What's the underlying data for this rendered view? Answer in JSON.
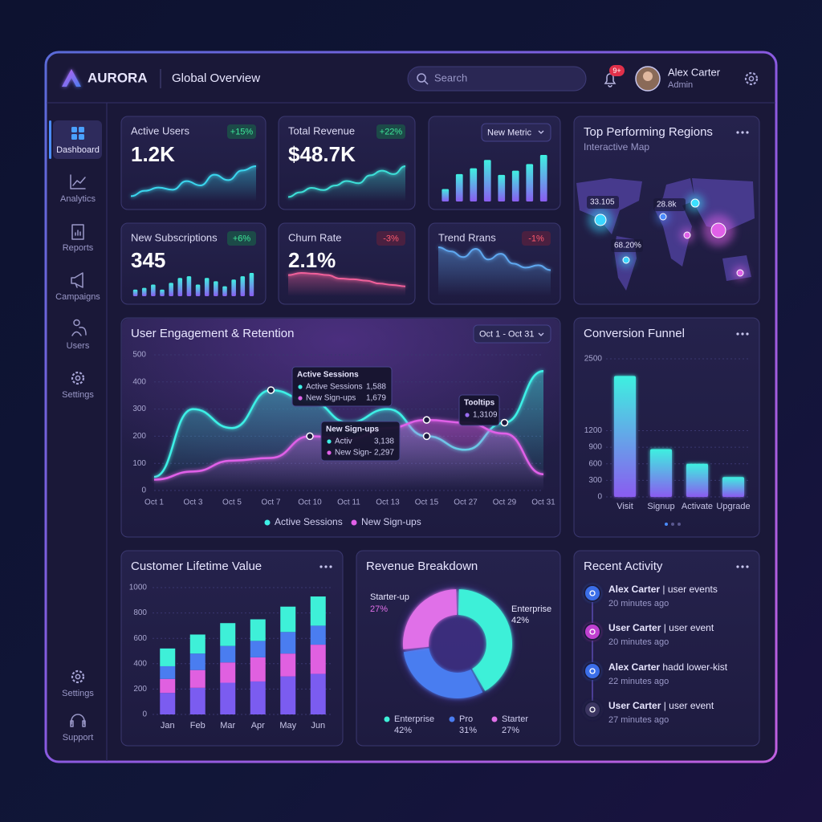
{
  "header": {
    "brand": "AURORA",
    "title": "Global Overview",
    "search_placeholder": "Search",
    "notification_count": "9+",
    "user": {
      "name": "Alex Carter",
      "role": "Admin"
    }
  },
  "sidebar": {
    "items": [
      "Dashboard",
      "Analytics",
      "Reports",
      "Campaigns",
      "Users",
      "Settings"
    ],
    "bottom_items": [
      "Settings",
      "Support"
    ]
  },
  "kpis": [
    {
      "title": "Active Users",
      "value": "1.2K",
      "change": "+15%",
      "type": "line",
      "color": "#3ad6ee",
      "values": [
        10,
        20,
        26,
        22,
        38,
        30,
        50,
        40,
        58,
        66
      ]
    },
    {
      "title": "Total Revenue",
      "value": "$48.7K",
      "change": "+22%",
      "type": "line",
      "color": "#3ee0d8",
      "values": [
        8,
        16,
        24,
        20,
        28,
        36,
        32,
        46,
        54,
        48,
        62
      ]
    },
    {
      "dropdown": "New Metric",
      "type": "bar",
      "color": "#6a8cf5",
      "values": [
        15,
        33,
        40,
        50,
        32,
        37,
        45,
        56
      ]
    },
    {
      "title": "New Subscriptions",
      "value": "345",
      "change": "+6%",
      "type": "bar",
      "color": "#6a8cf5",
      "values": [
        8,
        10,
        14,
        8,
        16,
        22,
        24,
        14,
        22,
        18,
        12,
        20,
        24,
        28
      ]
    },
    {
      "title": "Churn Rate",
      "value": "2.1%",
      "change": "-3%",
      "type": "line",
      "color": "#f0609a",
      "values": [
        30,
        33,
        32,
        30,
        25,
        24,
        22,
        18,
        16,
        14
      ]
    },
    {
      "title": "Trend Rrans",
      "change": "-1%",
      "type": "line",
      "color": "#5fa8f0",
      "values": [
        60,
        55,
        48,
        58,
        45,
        52,
        40,
        35,
        38,
        32
      ]
    }
  ],
  "map": {
    "title": "Top Performing Regions",
    "subtitle": "Interactive Map",
    "labels": [
      "33.105",
      "28.8k",
      "68.20%"
    ]
  },
  "chart_data": [
    {
      "type": "line",
      "title": "User Engagement & Retention",
      "date_range": "Oct 1 - Oct 31",
      "categories": [
        "Oct 1",
        "Oct 3",
        "Oct 5",
        "Oct 7",
        "Oct 10",
        "Oct 11",
        "Oct 13",
        "Oct 15",
        "Oct 27",
        "Oct 29",
        "Oct 31"
      ],
      "ylim": [
        0,
        500
      ],
      "yticks": [
        0,
        100,
        200,
        300,
        400,
        500
      ],
      "grid": true,
      "series": [
        {
          "name": "Active Sessions",
          "color": "#3ef0e6",
          "values": [
            50,
            300,
            230,
            370,
            330,
            250,
            300,
            200,
            150,
            250,
            440
          ]
        },
        {
          "name": "New Sign-ups",
          "color": "#e060e8",
          "values": [
            40,
            70,
            110,
            120,
            200,
            190,
            230,
            260,
            250,
            210,
            60
          ]
        }
      ],
      "tooltips": [
        {
          "title": "Active Sessions",
          "rows": [
            {
              "label": "Active Sessions",
              "value": "1,588",
              "color": "#3ef0e6"
            },
            {
              "label": "New Sign-ups",
              "value": "1,679",
              "color": "#e060e8"
            }
          ]
        },
        {
          "title": "New Sign-ups",
          "rows": [
            {
              "label": "Activ",
              "value": "3,138",
              "color": "#3ef0e6"
            },
            {
              "label": "New Sign-",
              "value": "2,297",
              "color": "#e060e8"
            }
          ]
        },
        {
          "title": "Tooltips",
          "rows": [
            {
              "value": "1,3109",
              "color": "#9a6cf0"
            }
          ]
        }
      ]
    },
    {
      "type": "bar",
      "title": "Conversion Funnel",
      "categories": [
        "Visit",
        "Signup",
        "Activate",
        "Upgrade"
      ],
      "values": [
        2190,
        865,
        600,
        360
      ],
      "ylim": [
        0,
        2500
      ],
      "yticks": [
        0,
        300,
        600,
        900,
        1200,
        2500
      ],
      "grid": true
    },
    {
      "type": "stacked_bar",
      "title": "Customer Lifetime Value",
      "categories": [
        "Jan",
        "Feb",
        "Mar",
        "Apr",
        "May",
        "Jun"
      ],
      "ylim": [
        0,
        1000
      ],
      "yticks": [
        0,
        200,
        400,
        600,
        800,
        1000
      ],
      "grid": true,
      "series": [
        {
          "color": "#7b5cf0",
          "values": [
            170,
            210,
            250,
            260,
            300,
            320
          ]
        },
        {
          "color": "#e060e0",
          "values": [
            110,
            140,
            160,
            190,
            180,
            230
          ]
        },
        {
          "color": "#4a7df0",
          "values": [
            100,
            130,
            130,
            130,
            170,
            150
          ]
        },
        {
          "color": "#3ef0d8",
          "values": [
            140,
            150,
            180,
            170,
            200,
            230
          ]
        }
      ]
    },
    {
      "type": "pie",
      "title": "Revenue Breakdown",
      "categories": [
        "Enterprise",
        "Pro",
        "Starter"
      ],
      "values": [
        42,
        31,
        27
      ],
      "value_labels": [
        "42%",
        "31%",
        "27%"
      ],
      "colors": [
        "#3ef0d8",
        "#4a7df0",
        "#e070e8"
      ],
      "annotation": "Starter-up"
    }
  ],
  "activity": {
    "title": "Recent Activity",
    "items": [
      {
        "name": "Alex Carter",
        "text": " | user events",
        "time": "20 minutes ago"
      },
      {
        "name": "User Carter",
        "text": " | user event",
        "time": "20 minutes ago"
      },
      {
        "name": "Alex Carter",
        "text": " hadd lower-kist",
        "time": "22 minutes ago"
      },
      {
        "name": "User Carter",
        "text": " | user event",
        "time": "27 minutes ago"
      }
    ]
  }
}
